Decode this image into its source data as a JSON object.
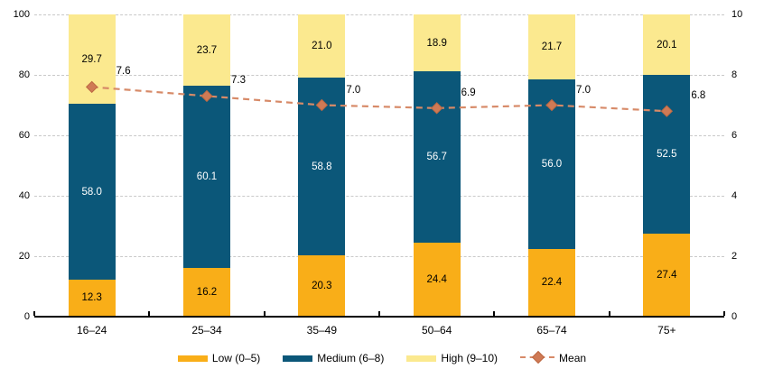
{
  "chart_data": {
    "type": "bar",
    "subtype": "stacked-percent-columns-with-mean-line",
    "title": "",
    "xlabel": "",
    "ylabel": "",
    "categories": [
      "16–24",
      "25–34",
      "35–49",
      "50–64",
      "65–74",
      "75+"
    ],
    "series": [
      {
        "name": "Low (0–5)",
        "color": "#f9ae18",
        "label_color": "#000000",
        "values": [
          12.3,
          16.2,
          20.3,
          24.4,
          22.4,
          27.4
        ]
      },
      {
        "name": "Medium (6–8)",
        "color": "#0b5779",
        "label_color": "#ffffff",
        "values": [
          58.0,
          60.1,
          58.8,
          56.7,
          56.0,
          52.5
        ]
      },
      {
        "name": "High (9–10)",
        "color": "#fbe98f",
        "label_color": "#000000",
        "values": [
          29.7,
          23.7,
          21.0,
          18.9,
          21.7,
          20.1
        ]
      }
    ],
    "line_series": {
      "name": "Mean",
      "axis": "right",
      "color": "#d78a68",
      "marker_fill": "#cf7a55",
      "marker_stroke": "#bd6843",
      "values": [
        7.6,
        7.3,
        7.0,
        6.9,
        7.0,
        6.8
      ]
    },
    "left_axis": {
      "min": 0,
      "max": 100,
      "ticks": [
        0,
        20,
        40,
        60,
        80,
        100
      ]
    },
    "right_axis": {
      "min": 0,
      "max": 10,
      "ticks": [
        0,
        2,
        4,
        6,
        8,
        10
      ]
    },
    "grid": true,
    "gridline_color": "#c9c9c9",
    "legend_position": "bottom"
  }
}
